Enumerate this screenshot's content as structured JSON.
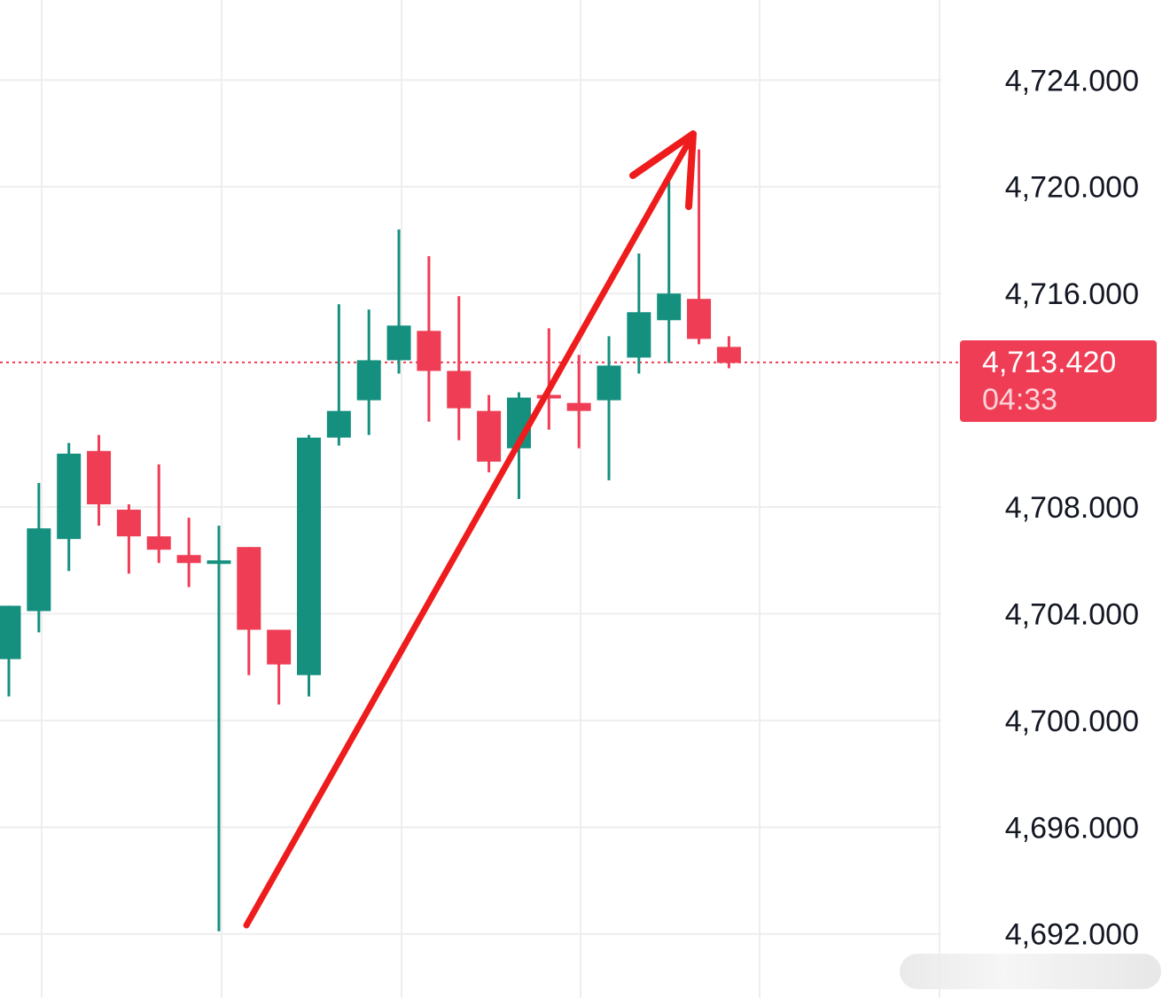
{
  "colors": {
    "up": "#15907f",
    "down": "#ee3d54",
    "grid": "#eeeeee",
    "annotation_arrow": "#ee1c1c",
    "current_price_line": "#ee3d54"
  },
  "price_tag": {
    "price": "4,713.420",
    "countdown": "04:33"
  },
  "chart_data": {
    "type": "candlestick",
    "ylim": [
      4689.6,
      4727.0
    ],
    "y_ticks": [
      4724,
      4720,
      4716,
      4708,
      4704,
      4700,
      4696,
      4692
    ],
    "y_tick_labels": [
      "4,724.000",
      "4,720.000",
      "4,716.000",
      "4,708.000",
      "4,704.000",
      "4,700.000",
      "4,696.000",
      "4,692.000"
    ],
    "current_price": 4713.42,
    "grid": true,
    "series": [
      {
        "values": [
          {
            "o": 4702.3,
            "h": 4704.3,
            "l": 4700.9,
            "c": 4704.3
          },
          {
            "o": 4704.1,
            "h": 4708.9,
            "l": 4703.3,
            "c": 4707.2
          },
          {
            "o": 4706.8,
            "h": 4710.4,
            "l": 4705.6,
            "c": 4710.0
          },
          {
            "o": 4710.1,
            "h": 4710.7,
            "l": 4707.3,
            "c": 4708.1
          },
          {
            "o": 4707.9,
            "h": 4708.1,
            "l": 4705.5,
            "c": 4706.9
          },
          {
            "o": 4706.9,
            "h": 4709.6,
            "l": 4705.9,
            "c": 4706.4
          },
          {
            "o": 4706.2,
            "h": 4707.6,
            "l": 4705.0,
            "c": 4705.9
          },
          {
            "o": 4706.0,
            "h": 4707.3,
            "l": 4692.1,
            "c": 4706.0
          },
          {
            "o": 4706.5,
            "h": 4706.3,
            "l": 4701.7,
            "c": 4703.4
          },
          {
            "o": 4703.4,
            "h": 4703.4,
            "l": 4700.6,
            "c": 4702.1
          },
          {
            "o": 4701.7,
            "h": 4710.7,
            "l": 4700.9,
            "c": 4710.6
          },
          {
            "o": 4710.6,
            "h": 4715.6,
            "l": 4710.3,
            "c": 4711.6
          },
          {
            "o": 4712.0,
            "h": 4715.4,
            "l": 4710.7,
            "c": 4713.5
          },
          {
            "o": 4713.5,
            "h": 4718.4,
            "l": 4713.0,
            "c": 4714.8
          },
          {
            "o": 4714.6,
            "h": 4717.4,
            "l": 4711.2,
            "c": 4713.1
          },
          {
            "o": 4713.1,
            "h": 4715.9,
            "l": 4710.5,
            "c": 4711.7
          },
          {
            "o": 4711.6,
            "h": 4712.2,
            "l": 4709.3,
            "c": 4709.7
          },
          {
            "o": 4710.2,
            "h": 4712.3,
            "l": 4708.3,
            "c": 4712.1
          },
          {
            "o": 4712.2,
            "h": 4714.7,
            "l": 4710.9,
            "c": 4712.1
          },
          {
            "o": 4711.9,
            "h": 4713.7,
            "l": 4710.2,
            "c": 4711.6
          },
          {
            "o": 4712.0,
            "h": 4714.4,
            "l": 4709.0,
            "c": 4713.3
          },
          {
            "o": 4713.6,
            "h": 4717.5,
            "l": 4713.0,
            "c": 4715.3
          },
          {
            "o": 4715.0,
            "h": 4720.2,
            "l": 4713.4,
            "c": 4716.0
          },
          {
            "o": 4715.8,
            "h": 4721.4,
            "l": 4714.1,
            "c": 4714.3
          },
          {
            "o": 4714.0,
            "h": 4714.4,
            "l": 4713.2,
            "c": 4713.4
          }
        ]
      }
    ]
  }
}
